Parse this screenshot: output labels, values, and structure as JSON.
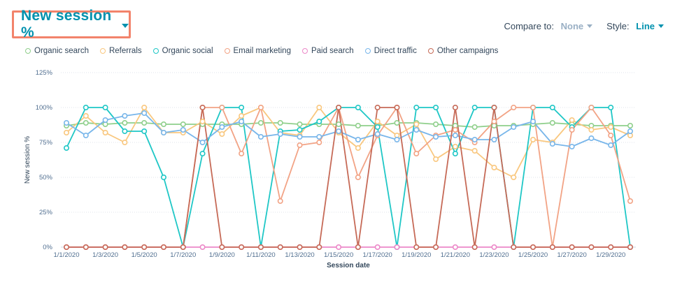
{
  "header": {
    "metric_title": "New session %",
    "compare_label": "Compare to:",
    "compare_value": "None",
    "style_label": "Style:",
    "style_value": "Line"
  },
  "colors": {
    "accent": "#0091ae",
    "highlight_border": "#f2836b"
  },
  "chart_data": {
    "type": "line",
    "xlabel": "Session date",
    "ylabel": "New session %",
    "ylim": [
      0,
      125
    ],
    "yticks": [
      "0%",
      "25%",
      "50%",
      "75%",
      "100%",
      "125%"
    ],
    "x": [
      "1/1/2020",
      "1/2/2020",
      "1/3/2020",
      "1/4/2020",
      "1/5/2020",
      "1/6/2020",
      "1/7/2020",
      "1/8/2020",
      "1/9/2020",
      "1/10/2020",
      "1/11/2020",
      "1/12/2020",
      "1/13/2020",
      "1/14/2020",
      "1/15/2020",
      "1/16/2020",
      "1/17/2020",
      "1/18/2020",
      "1/19/2020",
      "1/20/2020",
      "1/21/2020",
      "1/22/2020",
      "1/23/2020",
      "1/24/2020",
      "1/25/2020",
      "1/26/2020",
      "1/27/2020",
      "1/28/2020",
      "1/29/2020",
      "1/30/2020"
    ],
    "xtick_labels": [
      "1/1/2020",
      "1/3/2020",
      "1/5/2020",
      "1/7/2020",
      "1/9/2020",
      "1/11/2020",
      "1/13/2020",
      "1/15/2020",
      "1/17/2020",
      "1/19/2020",
      "1/21/2020",
      "1/23/2020",
      "1/25/2020",
      "1/27/2020",
      "1/29/2020"
    ],
    "grid": true,
    "legend_position": "top-left",
    "series": [
      {
        "name": "Organic search",
        "color": "#8fcf8b",
        "values": [
          87,
          89,
          88,
          89,
          89,
          88,
          88,
          88,
          88,
          88,
          89,
          89,
          88,
          88,
          88,
          87,
          87,
          89,
          89,
          88,
          87,
          86,
          87,
          87,
          88,
          89,
          88,
          87,
          87,
          87
        ]
      },
      {
        "name": "Referrals",
        "color": "#f9c77e",
        "values": [
          82,
          94,
          82,
          75,
          100,
          82,
          82,
          90,
          81,
          94,
          100,
          82,
          80,
          100,
          82,
          71,
          90,
          80,
          88,
          63,
          72,
          69,
          57,
          50,
          77,
          75,
          91,
          84,
          86,
          80
        ]
      },
      {
        "name": "Organic social",
        "color": "#1fc7c6",
        "values": [
          71,
          100,
          100,
          83,
          83,
          50,
          0,
          67,
          100,
          100,
          0,
          83,
          84,
          90,
          100,
          100,
          86,
          0,
          100,
          100,
          67,
          100,
          100,
          0,
          100,
          100,
          86,
          100,
          100,
          0
        ]
      },
      {
        "name": "Email marketing",
        "color": "#f2a385",
        "values": [
          0,
          0,
          0,
          0,
          0,
          0,
          0,
          100,
          100,
          67,
          100,
          33,
          73,
          75,
          100,
          50,
          80,
          100,
          67,
          80,
          84,
          75,
          90,
          100,
          100,
          0,
          84,
          100,
          80,
          33
        ]
      },
      {
        "name": "Paid search",
        "color": "#ec88c8",
        "values": [
          0,
          0,
          0,
          0,
          0,
          0,
          0,
          0,
          0,
          0,
          0,
          0,
          0,
          0,
          0,
          0,
          0,
          0,
          0,
          0,
          0,
          0,
          0,
          0,
          0,
          0,
          0,
          0,
          0,
          0
        ]
      },
      {
        "name": "Direct traffic",
        "color": "#78b6ea",
        "values": [
          89,
          80,
          91,
          94,
          96,
          82,
          84,
          75,
          86,
          90,
          79,
          81,
          79,
          79,
          83,
          77,
          81,
          77,
          84,
          79,
          80,
          77,
          77,
          86,
          90,
          74,
          72,
          78,
          73,
          83
        ]
      },
      {
        "name": "Other campaigns",
        "color": "#c66a57",
        "values": [
          0,
          0,
          0,
          0,
          0,
          0,
          0,
          100,
          0,
          0,
          0,
          0,
          0,
          0,
          100,
          0,
          100,
          100,
          0,
          0,
          100,
          0,
          100,
          0,
          0,
          0,
          0,
          0,
          0,
          0
        ]
      }
    ]
  }
}
